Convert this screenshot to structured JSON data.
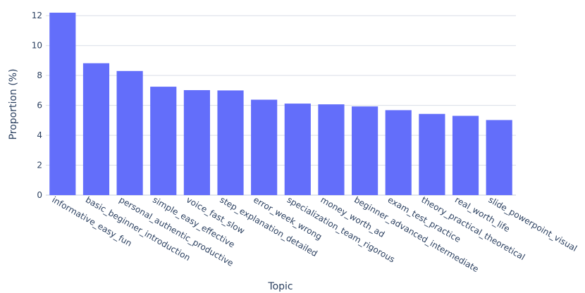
{
  "chart_data": {
    "type": "bar",
    "categories": [
      "informative_easy_fun",
      "basic_beginner_introduction",
      "personal_authentic_productive",
      "simple_easy_effective",
      "voice_fast_slow",
      "step_explanation_detailed",
      "error_week_wrong",
      "specialization_team_rigorous",
      "money_worth_ad",
      "beginner_advanced_intermediate",
      "exam_test_practice",
      "theory_practical_theoretical",
      "real_worth_life",
      "slide_powerpoint_visual"
    ],
    "values": [
      12.2,
      8.82,
      8.3,
      7.25,
      7.02,
      7.0,
      6.38,
      6.12,
      6.07,
      5.93,
      5.68,
      5.43,
      5.3,
      5.02
    ],
    "xlabel": "Topic",
    "ylabel": "Proportion (%)",
    "ylim": [
      0,
      12.2
    ],
    "yticks": [
      0,
      2,
      4,
      6,
      8,
      10,
      12
    ],
    "bar_color": "#636efa",
    "grid": true
  }
}
